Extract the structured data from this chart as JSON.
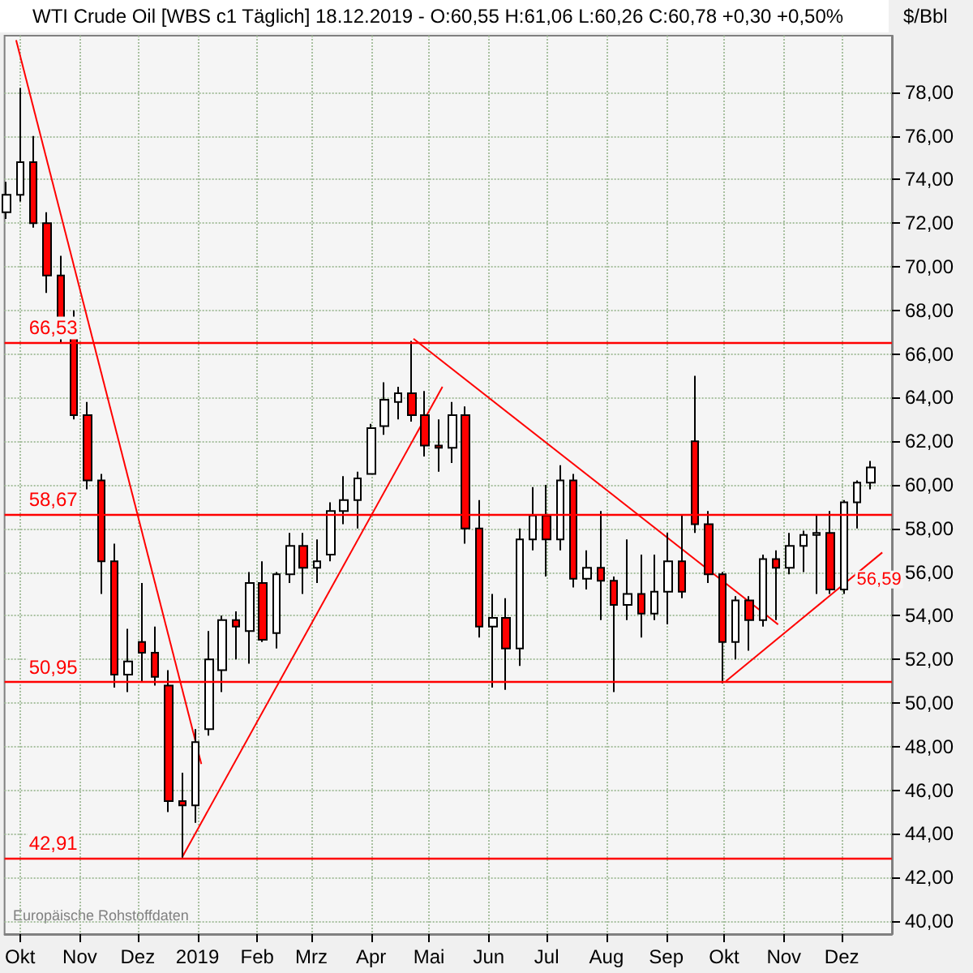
{
  "chart_data": {
    "type": "candlestick",
    "title": "WTI Crude Oil [WBS c1 Täglich] 18.12.2019 - O:60,55 H:61,06 L:60,26 C:60,78 +0,30 +0,50%",
    "ylabel": "$/Bbl",
    "x": [
      "2018-09-24",
      "2018-10-01",
      "2018-10-08",
      "2018-10-15",
      "2018-10-22",
      "2018-10-29",
      "2018-11-05",
      "2018-11-12",
      "2018-11-19",
      "2018-11-26",
      "2018-12-03",
      "2018-12-10",
      "2018-12-17",
      "2018-12-24",
      "2018-12-31",
      "2019-01-07",
      "2019-01-14",
      "2019-01-21",
      "2019-01-28",
      "2019-02-04",
      "2019-02-11",
      "2019-02-18",
      "2019-02-25",
      "2019-03-04",
      "2019-03-11",
      "2019-03-18",
      "2019-03-25",
      "2019-04-01",
      "2019-04-08",
      "2019-04-15",
      "2019-04-22",
      "2019-04-29",
      "2019-05-06",
      "2019-05-13",
      "2019-05-20",
      "2019-05-27",
      "2019-06-03",
      "2019-06-10",
      "2019-06-17",
      "2019-06-24",
      "2019-07-01",
      "2019-07-08",
      "2019-07-15",
      "2019-07-22",
      "2019-07-29",
      "2019-08-05",
      "2019-08-12",
      "2019-08-19",
      "2019-08-26",
      "2019-09-02",
      "2019-09-09",
      "2019-09-16",
      "2019-09-23",
      "2019-09-30",
      "2019-10-07",
      "2019-10-14",
      "2019-10-21",
      "2019-10-28",
      "2019-11-04",
      "2019-11-11",
      "2019-11-18",
      "2019-11-25",
      "2019-12-02",
      "2019-12-09",
      "2019-12-16"
    ],
    "ohlc": [
      [
        72.5,
        73.9,
        72.2,
        73.3
      ],
      [
        73.3,
        78.2,
        73.0,
        74.8
      ],
      [
        74.8,
        76.0,
        71.8,
        72.0
      ],
      [
        72.0,
        72.5,
        68.8,
        69.6
      ],
      [
        69.6,
        70.5,
        66.5,
        67.6
      ],
      [
        67.6,
        68.0,
        63.0,
        63.2
      ],
      [
        63.2,
        63.8,
        59.8,
        60.2
      ],
      [
        60.2,
        60.5,
        55.0,
        56.5
      ],
      [
        56.5,
        57.3,
        50.7,
        51.3
      ],
      [
        51.3,
        53.4,
        50.5,
        51.9
      ],
      [
        52.8,
        55.5,
        51.0,
        52.3
      ],
      [
        52.3,
        53.5,
        50.8,
        51.2
      ],
      [
        50.8,
        51.5,
        45.0,
        45.5
      ],
      [
        45.5,
        46.8,
        42.9,
        45.3
      ],
      [
        45.3,
        48.8,
        44.5,
        48.2
      ],
      [
        48.8,
        53.3,
        48.5,
        52.0
      ],
      [
        51.5,
        54.0,
        50.5,
        53.8
      ],
      [
        53.8,
        54.2,
        52.0,
        53.5
      ],
      [
        53.3,
        56.0,
        51.8,
        55.5
      ],
      [
        55.5,
        56.5,
        52.8,
        52.9
      ],
      [
        53.2,
        56.0,
        52.5,
        55.9
      ],
      [
        55.9,
        57.8,
        55.5,
        57.2
      ],
      [
        57.2,
        57.8,
        55.0,
        56.2
      ],
      [
        56.2,
        57.5,
        55.5,
        56.5
      ],
      [
        56.8,
        59.2,
        56.5,
        58.8
      ],
      [
        58.8,
        60.4,
        58.2,
        59.3
      ],
      [
        59.3,
        60.6,
        58.0,
        60.3
      ],
      [
        60.5,
        62.8,
        60.5,
        62.6
      ],
      [
        62.7,
        64.7,
        62.3,
        63.9
      ],
      [
        63.8,
        64.5,
        63.0,
        64.2
      ],
      [
        64.2,
        66.6,
        62.9,
        63.2
      ],
      [
        63.2,
        64.3,
        61.3,
        61.8
      ],
      [
        61.8,
        63.0,
        60.6,
        61.7
      ],
      [
        61.7,
        63.8,
        61.0,
        63.2
      ],
      [
        63.2,
        63.6,
        57.3,
        58.0
      ],
      [
        58.0,
        59.3,
        53.0,
        53.5
      ],
      [
        53.5,
        55.0,
        50.7,
        53.9
      ],
      [
        53.9,
        54.8,
        50.6,
        52.5
      ],
      [
        52.5,
        58.0,
        51.7,
        57.5
      ],
      [
        57.5,
        59.9,
        57.0,
        58.6
      ],
      [
        58.6,
        60.0,
        55.8,
        57.5
      ],
      [
        57.5,
        60.9,
        57.0,
        60.2
      ],
      [
        60.2,
        60.5,
        55.3,
        55.7
      ],
      [
        55.7,
        57.0,
        55.2,
        56.2
      ],
      [
        56.2,
        58.8,
        53.8,
        55.6
      ],
      [
        55.6,
        55.8,
        50.5,
        54.5
      ],
      [
        54.5,
        57.5,
        53.8,
        55.0
      ],
      [
        55.0,
        56.8,
        53.0,
        54.1
      ],
      [
        54.1,
        56.8,
        53.8,
        55.1
      ],
      [
        55.1,
        57.8,
        53.6,
        56.5
      ],
      [
        56.5,
        58.6,
        54.8,
        55.1
      ],
      [
        62.0,
        65.0,
        57.8,
        58.2
      ],
      [
        58.2,
        58.8,
        55.5,
        55.9
      ],
      [
        55.9,
        56.0,
        50.9,
        52.8
      ],
      [
        52.8,
        54.9,
        52.0,
        54.7
      ],
      [
        54.7,
        54.9,
        52.4,
        53.8
      ],
      [
        53.8,
        56.8,
        53.5,
        56.6
      ],
      [
        56.6,
        57.0,
        53.8,
        56.2
      ],
      [
        56.2,
        57.8,
        55.9,
        57.2
      ],
      [
        57.2,
        57.9,
        56.0,
        57.7
      ],
      [
        57.7,
        58.6,
        55.0,
        57.8
      ],
      [
        57.8,
        58.8,
        55.0,
        55.2
      ],
      [
        55.2,
        59.3,
        55.0,
        59.2
      ],
      [
        59.2,
        60.2,
        58.0,
        60.1
      ],
      [
        60.1,
        61.1,
        59.8,
        60.8
      ]
    ],
    "series": [
      {
        "type": "line",
        "color": "#ff0000",
        "x": [
          "2018-09-29",
          "2019-01-03"
        ],
        "values": [
          80.4,
          47.2
        ]
      },
      {
        "type": "line",
        "color": "#ff0000",
        "x": [
          "2018-12-24",
          "2019-05-08"
        ],
        "values": [
          42.91,
          64.5
        ]
      },
      {
        "type": "line",
        "color": "#ff0000",
        "x": [
          "2019-04-23",
          "2019-10-29"
        ],
        "values": [
          66.7,
          53.6
        ]
      },
      {
        "type": "line",
        "color": "#ff0000",
        "x": [
          "2019-10-02",
          "2019-12-22"
        ],
        "values": [
          51.0,
          56.9
        ]
      }
    ],
    "ref_lines": [
      {
        "axis": "y",
        "value": 66.53,
        "label": "66,53",
        "color": "#ff0000"
      },
      {
        "axis": "y",
        "value": 58.67,
        "label": "58,67",
        "color": "#ff0000"
      },
      {
        "axis": "y",
        "value": 50.95,
        "label": "50,95",
        "color": "#ff0000"
      },
      {
        "axis": "y",
        "value": 42.91,
        "label": "42,91",
        "color": "#ff0000"
      }
    ],
    "annotations": [
      {
        "text": "56,59",
        "x": "2019-12-18",
        "y": 56.59
      },
      "Europäische Rohstoffdaten"
    ],
    "xlim": [
      "2018-09-23",
      "2019-12-27"
    ],
    "xticks": [
      {
        "value": "2018-10-01",
        "label": "Okt"
      },
      {
        "value": "2018-11-01",
        "label": "Nov"
      },
      {
        "value": "2018-12-01",
        "label": "Dez"
      },
      {
        "value": "2019-01-01",
        "label": "2019"
      },
      {
        "value": "2019-02-01",
        "label": "Feb"
      },
      {
        "value": "2019-03-01",
        "label": "Mrz"
      },
      {
        "value": "2019-04-01",
        "label": "Apr"
      },
      {
        "value": "2019-05-01",
        "label": "Mai"
      },
      {
        "value": "2019-06-01",
        "label": "Jun"
      },
      {
        "value": "2019-07-01",
        "label": "Jul"
      },
      {
        "value": "2019-08-01",
        "label": "Aug"
      },
      {
        "value": "2019-09-01",
        "label": "Sep"
      },
      {
        "value": "2019-10-01",
        "label": "Okt"
      },
      {
        "value": "2019-11-01",
        "label": "Nov"
      },
      {
        "value": "2019-12-01",
        "label": "Dez"
      }
    ],
    "ylim": [
      39.4,
      80.6
    ],
    "yticks": [
      {
        "value": 40,
        "label": "40,00"
      },
      {
        "value": 42,
        "label": "42,00"
      },
      {
        "value": 44,
        "label": "44,00"
      },
      {
        "value": 46,
        "label": "46,00"
      },
      {
        "value": 48,
        "label": "48,00"
      },
      {
        "value": 50,
        "label": "50,00"
      },
      {
        "value": 52,
        "label": "52,00"
      },
      {
        "value": 54,
        "label": "54,00"
      },
      {
        "value": 56,
        "label": "56,00"
      },
      {
        "value": 58,
        "label": "58,00"
      },
      {
        "value": 60,
        "label": "60,00"
      },
      {
        "value": 62,
        "label": "62,00"
      },
      {
        "value": 64,
        "label": "64,00"
      },
      {
        "value": 66,
        "label": "66,00"
      },
      {
        "value": 68,
        "label": "68,00"
      },
      {
        "value": 70,
        "label": "70,00"
      },
      {
        "value": 72,
        "label": "72,00"
      },
      {
        "value": 74,
        "label": "74,00"
      },
      {
        "value": 76,
        "label": "76,00"
      },
      {
        "value": 78,
        "label": "78,00"
      }
    ],
    "grid": true,
    "legend": false,
    "line_style": "solid",
    "marker": "none"
  }
}
